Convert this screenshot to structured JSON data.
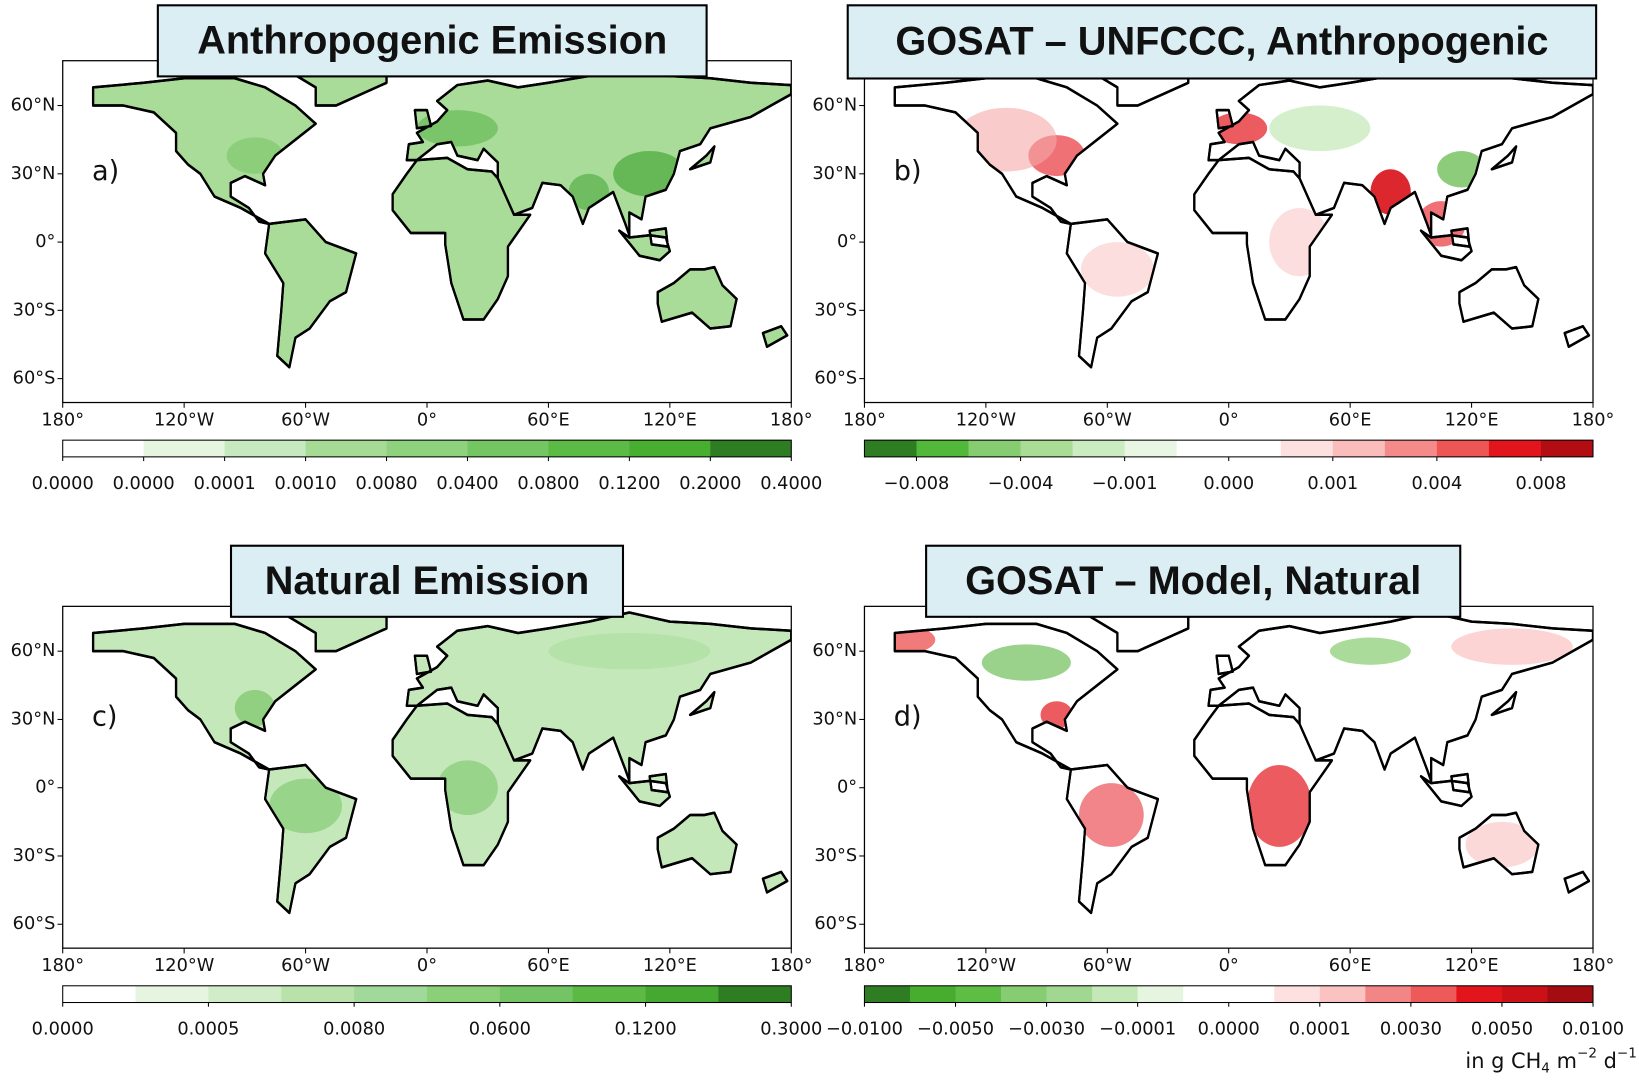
{
  "panels": [
    {
      "title": "Anthropogenic Emission",
      "label": "a)",
      "lat_ticks": [
        "60°N",
        "30°N",
        "0°",
        "30°S",
        "60°S"
      ],
      "lon_ticks": [
        "180°",
        "120°W",
        "60°W",
        "0°",
        "60°E",
        "120°E",
        "180°"
      ],
      "colorbar": {
        "colors": [
          "#ffffff",
          "#e5f5e0",
          "#c7e9c0",
          "#a6db96",
          "#8ed27d",
          "#74c663",
          "#5bbb45",
          "#47ae30",
          "#2f7d22"
        ],
        "ticks": [
          "0.0000",
          "0.0000",
          "0.0001",
          "0.0010",
          "0.0080",
          "0.0400",
          "0.0800",
          "0.1200",
          "0.2000",
          "0.4000"
        ]
      }
    },
    {
      "title": "GOSAT – UNFCCC, Anthropogenic",
      "label": "b)",
      "lat_ticks": [
        "60°N",
        "30°N",
        "0°",
        "30°S",
        "60°S"
      ],
      "lon_ticks": [
        "180°",
        "120°W",
        "60°W",
        "0°",
        "60°E",
        "120°E",
        "180°"
      ],
      "colorbar": {
        "colors": [
          "#2f7d22",
          "#52b83a",
          "#86cc70",
          "#a9dc95",
          "#cbebc0",
          "#e8f6e3",
          "#ffffff",
          "#ffffff",
          "#fde0e0",
          "#fbbcbc",
          "#f48a8a",
          "#ee5555",
          "#e3151c",
          "#b30d14"
        ],
        "ticks": [
          "−0.008",
          "−0.004",
          "−0.001",
          "0.000",
          "0.001",
          "0.004",
          "0.008"
        ]
      }
    },
    {
      "title": "Natural Emission",
      "label": "c)",
      "lat_ticks": [
        "60°N",
        "30°N",
        "0°",
        "30°S",
        "60°S"
      ],
      "lon_ticks": [
        "180°",
        "120°W",
        "60°W",
        "0°",
        "60°E",
        "120°E",
        "180°"
      ],
      "colorbar": {
        "colors": [
          "#ffffff",
          "#e5f5e0",
          "#d0ecc8",
          "#b9e2ab",
          "#a1d99b",
          "#8bcf78",
          "#74c466",
          "#5bb944",
          "#45a831",
          "#2f7d22"
        ],
        "ticks": [
          "0.0000",
          "0.0005",
          "0.0080",
          "0.0600",
          "0.1200",
          "0.3000"
        ]
      }
    },
    {
      "title": "GOSAT – Model, Natural",
      "label": "d)",
      "lat_ticks": [
        "60°N",
        "30°N",
        "0°",
        "30°S",
        "60°S"
      ],
      "lon_ticks": [
        "180°",
        "120°W",
        "60°W",
        "0°",
        "60°E",
        "120°E",
        "180°"
      ],
      "colorbar": {
        "colors": [
          "#2f7d22",
          "#47ad2e",
          "#5dbd45",
          "#86cc70",
          "#a1d790",
          "#c4e8b7",
          "#e5f5e0",
          "#ffffff",
          "#ffffff",
          "#fde0e0",
          "#fbc2c2",
          "#f28585",
          "#ee5a5a",
          "#e3151c",
          "#cc1018",
          "#a30d12"
        ],
        "ticks": [
          "−0.0100",
          "−0.0050",
          "−0.0030",
          "−0.0001",
          "0.0000",
          "0.0001",
          "0.0030",
          "0.0050",
          "0.0100"
        ]
      }
    }
  ],
  "unit": [
    "in g CH",
    "4",
    " m",
    "−2",
    " d",
    "−1"
  ]
}
